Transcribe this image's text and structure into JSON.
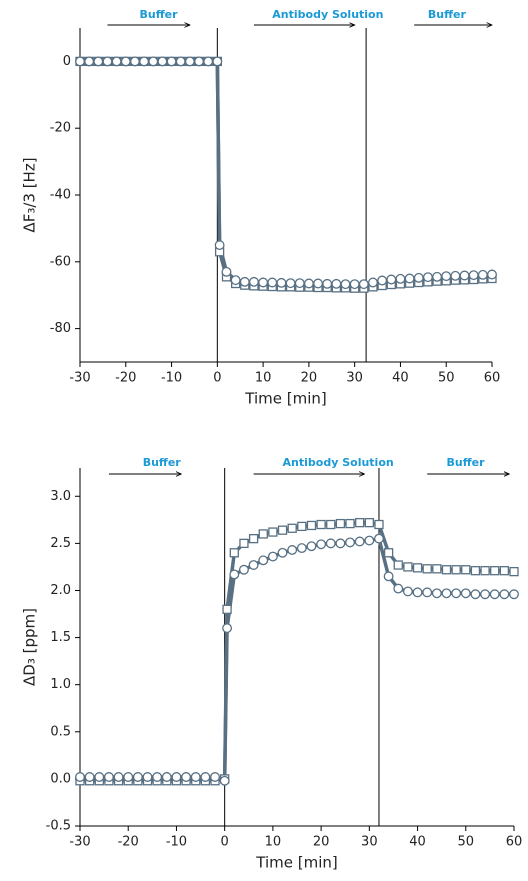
{
  "chart_data": [
    {
      "type": "line",
      "xlabel": "Time [min]",
      "ylabel": "ΔF₃/3 [Hz]",
      "annotations": [
        "Buffer",
        "Antibody Solution",
        "Buffer"
      ],
      "vlines": [
        0,
        32.5
      ],
      "xlim": [
        -30,
        60
      ],
      "xticks": [
        -30,
        -20,
        -10,
        0,
        10,
        20,
        30,
        40,
        50,
        60
      ],
      "ylim": [
        -90,
        10
      ],
      "yticks": [
        0,
        -20,
        -40,
        -60,
        -80
      ],
      "x": [
        -30,
        -28,
        -26,
        -24,
        -22,
        -20,
        -18,
        -16,
        -14,
        -12,
        -10,
        -8,
        -6,
        -4,
        -2,
        0,
        0.5,
        2,
        4,
        6,
        8,
        10,
        12,
        14,
        16,
        18,
        20,
        22,
        24,
        26,
        28,
        30,
        32,
        34,
        36,
        38,
        40,
        42,
        44,
        46,
        48,
        50,
        52,
        54,
        56,
        58,
        60
      ],
      "series": [
        {
          "marker": "square",
          "color": "#587083",
          "values": [
            0,
            0,
            0,
            0,
            0,
            0,
            0,
            0,
            0,
            0,
            0,
            0,
            0,
            0,
            0,
            0,
            -57,
            -64.5,
            -66.5,
            -67,
            -67.2,
            -67.3,
            -67.4,
            -67.5,
            -67.5,
            -67.6,
            -67.6,
            -67.7,
            -67.7,
            -67.8,
            -67.8,
            -67.9,
            -67.9,
            -67.5,
            -67.1,
            -66.8,
            -66.6,
            -66.4,
            -66.2,
            -66,
            -65.8,
            -65.7,
            -65.5,
            -65.4,
            -65.3,
            -65.1,
            -65
          ]
        },
        {
          "marker": "circle",
          "color": "#587083",
          "values": [
            0,
            0,
            0,
            0,
            0,
            0,
            0,
            0,
            0,
            0,
            0,
            0,
            0,
            0,
            0,
            0,
            -55,
            -63,
            -65.5,
            -66,
            -66,
            -66.2,
            -66.2,
            -66.3,
            -66.4,
            -66.4,
            -66.5,
            -66.5,
            -66.6,
            -66.6,
            -66.7,
            -66.7,
            -66.7,
            -66.2,
            -65.6,
            -65.3,
            -65.1,
            -65,
            -64.8,
            -64.6,
            -64.5,
            -64.3,
            -64.2,
            -64.1,
            -64,
            -63.9,
            -63.8
          ]
        }
      ]
    },
    {
      "type": "line",
      "xlabel": "Time [min]",
      "ylabel": "ΔD₃ [ppm]",
      "annotations": [
        "Buffer",
        "Antibody Solution",
        "Buffer"
      ],
      "vlines": [
        0,
        32
      ],
      "xlim": [
        -30,
        60
      ],
      "xticks": [
        -30,
        -20,
        -10,
        0,
        10,
        20,
        30,
        40,
        50,
        60
      ],
      "ylim": [
        -0.5,
        3.3
      ],
      "yticks": [
        {
          "value": -0.5,
          "label": "-0.5"
        },
        {
          "value": 0,
          "label": "0.0"
        },
        0.5,
        {
          "value": 1,
          "label": "1.0"
        },
        1.5,
        {
          "value": 2,
          "label": "2.0"
        },
        2.5,
        {
          "value": 3,
          "label": "3.0"
        }
      ],
      "x": [
        -30,
        -28,
        -26,
        -24,
        -22,
        -20,
        -18,
        -16,
        -14,
        -12,
        -10,
        -8,
        -6,
        -4,
        -2,
        0,
        0.5,
        2,
        4,
        6,
        8,
        10,
        12,
        14,
        16,
        18,
        20,
        22,
        24,
        26,
        28,
        30,
        32,
        34,
        36,
        38,
        40,
        42,
        44,
        46,
        48,
        50,
        52,
        54,
        56,
        58,
        60
      ],
      "series": [
        {
          "marker": "square",
          "color": "#587083",
          "values": [
            -0.02,
            -0.02,
            -0.02,
            -0.02,
            -0.02,
            -0.02,
            -0.02,
            -0.02,
            -0.02,
            -0.02,
            -0.02,
            -0.02,
            -0.02,
            -0.02,
            -0.02,
            0,
            1.8,
            2.4,
            2.5,
            2.55,
            2.6,
            2.62,
            2.64,
            2.66,
            2.68,
            2.69,
            2.7,
            2.7,
            2.71,
            2.71,
            2.72,
            2.72,
            2.7,
            2.4,
            2.27,
            2.25,
            2.24,
            2.23,
            2.23,
            2.22,
            2.22,
            2.22,
            2.21,
            2.21,
            2.21,
            2.21,
            2.2
          ]
        },
        {
          "marker": "circle",
          "color": "#587083",
          "values": [
            0.02,
            0.02,
            0.02,
            0.02,
            0.02,
            0.02,
            0.02,
            0.02,
            0.02,
            0.02,
            0.02,
            0.02,
            0.02,
            0.02,
            0.02,
            -0.02,
            1.6,
            2.17,
            2.22,
            2.27,
            2.32,
            2.36,
            2.4,
            2.43,
            2.45,
            2.47,
            2.49,
            2.5,
            2.5,
            2.51,
            2.52,
            2.53,
            2.55,
            2.15,
            2.02,
            1.99,
            1.98,
            1.98,
            1.97,
            1.97,
            1.97,
            1.97,
            1.96,
            1.96,
            1.96,
            1.96,
            1.96
          ]
        }
      ]
    }
  ]
}
